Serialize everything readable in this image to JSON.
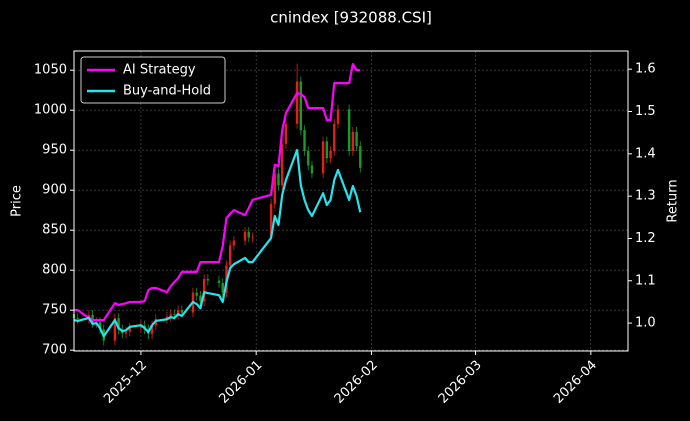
{
  "chart_data": {
    "type": "candlestick",
    "title": "cnindex [932088.CSI]",
    "ylabel": "Price",
    "y2label": "Return",
    "x": [
      -18,
      -17,
      -14,
      -13,
      -12,
      -11,
      -10,
      -7,
      -6,
      -5,
      -4,
      -3,
      0,
      1,
      2,
      3,
      4,
      7,
      8,
      9,
      10,
      11,
      14,
      15,
      16,
      17,
      18,
      21,
      22,
      23,
      24,
      25,
      28,
      29,
      30,
      35,
      36,
      37,
      38,
      39,
      42,
      43,
      44,
      45,
      46,
      49,
      50,
      51,
      52,
      53,
      56,
      57,
      58,
      59
    ],
    "xlim": [
      -18,
      131
    ],
    "xticks": [
      {
        "value": 0,
        "label": "2025-12"
      },
      {
        "value": 31,
        "label": "2026-01"
      },
      {
        "value": 62,
        "label": "2026-02"
      },
      {
        "value": 90,
        "label": "2026-03"
      },
      {
        "value": 121,
        "label": "2026-04"
      }
    ],
    "ylim": [
      699,
      1074
    ],
    "yticks": [
      700,
      750,
      800,
      850,
      900,
      950,
      1000,
      1050
    ],
    "y2lim": [
      0.934,
      1.643
    ],
    "y2ticks": [
      {
        "value": 1,
        "label": "1.0"
      },
      1.1,
      1.2,
      1.3,
      1.4,
      1.5,
      1.6
    ],
    "grid": true,
    "legend": "upper left",
    "up_color": "#e0201b",
    "down_color": "#1a9a2a",
    "ohlc": {
      "open": [
        745,
        740,
        739,
        744,
        734,
        735,
        726,
        712,
        740,
        726,
        721,
        723,
        728,
        731,
        726,
        720,
        731,
        739,
        742,
        745,
        744,
        750,
        747,
        772,
        768,
        761,
        789,
        787,
        784,
        772,
        806,
        831,
        837,
        848,
        841,
        841,
        883,
        921,
        906,
        958,
        983,
        1036,
        975,
        949,
        931,
        921,
        961,
        940,
        949,
        983,
        1001,
        949,
        973,
        955
      ],
      "high": [
        751,
        746,
        750,
        750,
        741,
        741,
        732,
        746,
        746,
        732,
        729,
        734,
        737,
        737,
        732,
        737,
        745,
        748,
        751,
        751,
        756,
        756,
        778,
        778,
        774,
        795,
        795,
        793,
        790,
        812,
        837,
        843,
        854,
        854,
        847,
        889,
        927,
        927,
        964,
        989,
        1058,
        1042,
        981,
        955,
        937,
        967,
        967,
        955,
        989,
        1007,
        1007,
        979,
        979,
        961
      ],
      "low": [
        734,
        733,
        733,
        728,
        728,
        720,
        706,
        706,
        720,
        715,
        715,
        717,
        722,
        720,
        714,
        714,
        725,
        733,
        736,
        738,
        738,
        741,
        741,
        762,
        755,
        755,
        781,
        778,
        766,
        766,
        800,
        825,
        831,
        835,
        835,
        835,
        877,
        900,
        900,
        952,
        977,
        969,
        943,
        925,
        915,
        915,
        934,
        934,
        943,
        977,
        943,
        943,
        949,
        922
      ],
      "close": [
        740,
        739,
        744,
        734,
        735,
        726,
        712,
        740,
        726,
        721,
        723,
        728,
        731,
        726,
        720,
        731,
        739,
        742,
        745,
        744,
        750,
        747,
        772,
        768,
        761,
        789,
        787,
        784,
        772,
        806,
        831,
        837,
        848,
        841,
        841,
        883,
        921,
        906,
        958,
        983,
        1036,
        975,
        949,
        931,
        921,
        961,
        940,
        949,
        983,
        1001,
        949,
        973,
        955,
        928
      ]
    },
    "series": [
      {
        "name": "AI Strategy",
        "color": "#ff00ff",
        "axis": "y2",
        "values": [
          1.031,
          1.031,
          1.012,
          1.007,
          1.007,
          1.007,
          1.007,
          1.047,
          1.043,
          1.045,
          1.047,
          1.05,
          1.05,
          1.052,
          1.078,
          1.083,
          1.083,
          1.073,
          1.087,
          1.097,
          1.106,
          1.121,
          1.121,
          1.121,
          1.144,
          1.144,
          1.144,
          1.144,
          1.182,
          1.248,
          1.258,
          1.267,
          1.255,
          1.272,
          1.291,
          1.303,
          1.374,
          1.371,
          1.456,
          1.496,
          1.544,
          1.541,
          1.534,
          1.508,
          1.508,
          1.508,
          1.48,
          1.48,
          1.567,
          1.567,
          1.567,
          1.612,
          1.598,
          1.598
        ]
      },
      {
        "name": "Buy-and-Hold",
        "color": "#22e5ee",
        "axis": "y2",
        "values": [
          1.007,
          1.005,
          1.012,
          0.998,
          1.0,
          0.988,
          0.969,
          1.007,
          0.988,
          0.981,
          0.983,
          0.991,
          0.995,
          0.988,
          0.979,
          0.995,
          1.005,
          1.009,
          1.014,
          1.012,
          1.021,
          1.017,
          1.05,
          1.045,
          1.035,
          1.073,
          1.071,
          1.066,
          1.05,
          1.097,
          1.13,
          1.139,
          1.154,
          1.144,
          1.144,
          1.201,
          1.253,
          1.232,
          1.303,
          1.338,
          1.409,
          1.326,
          1.291,
          1.267,
          1.253,
          1.307,
          1.279,
          1.291,
          1.338,
          1.362,
          1.291,
          1.324,
          1.3,
          1.262
        ]
      }
    ]
  }
}
